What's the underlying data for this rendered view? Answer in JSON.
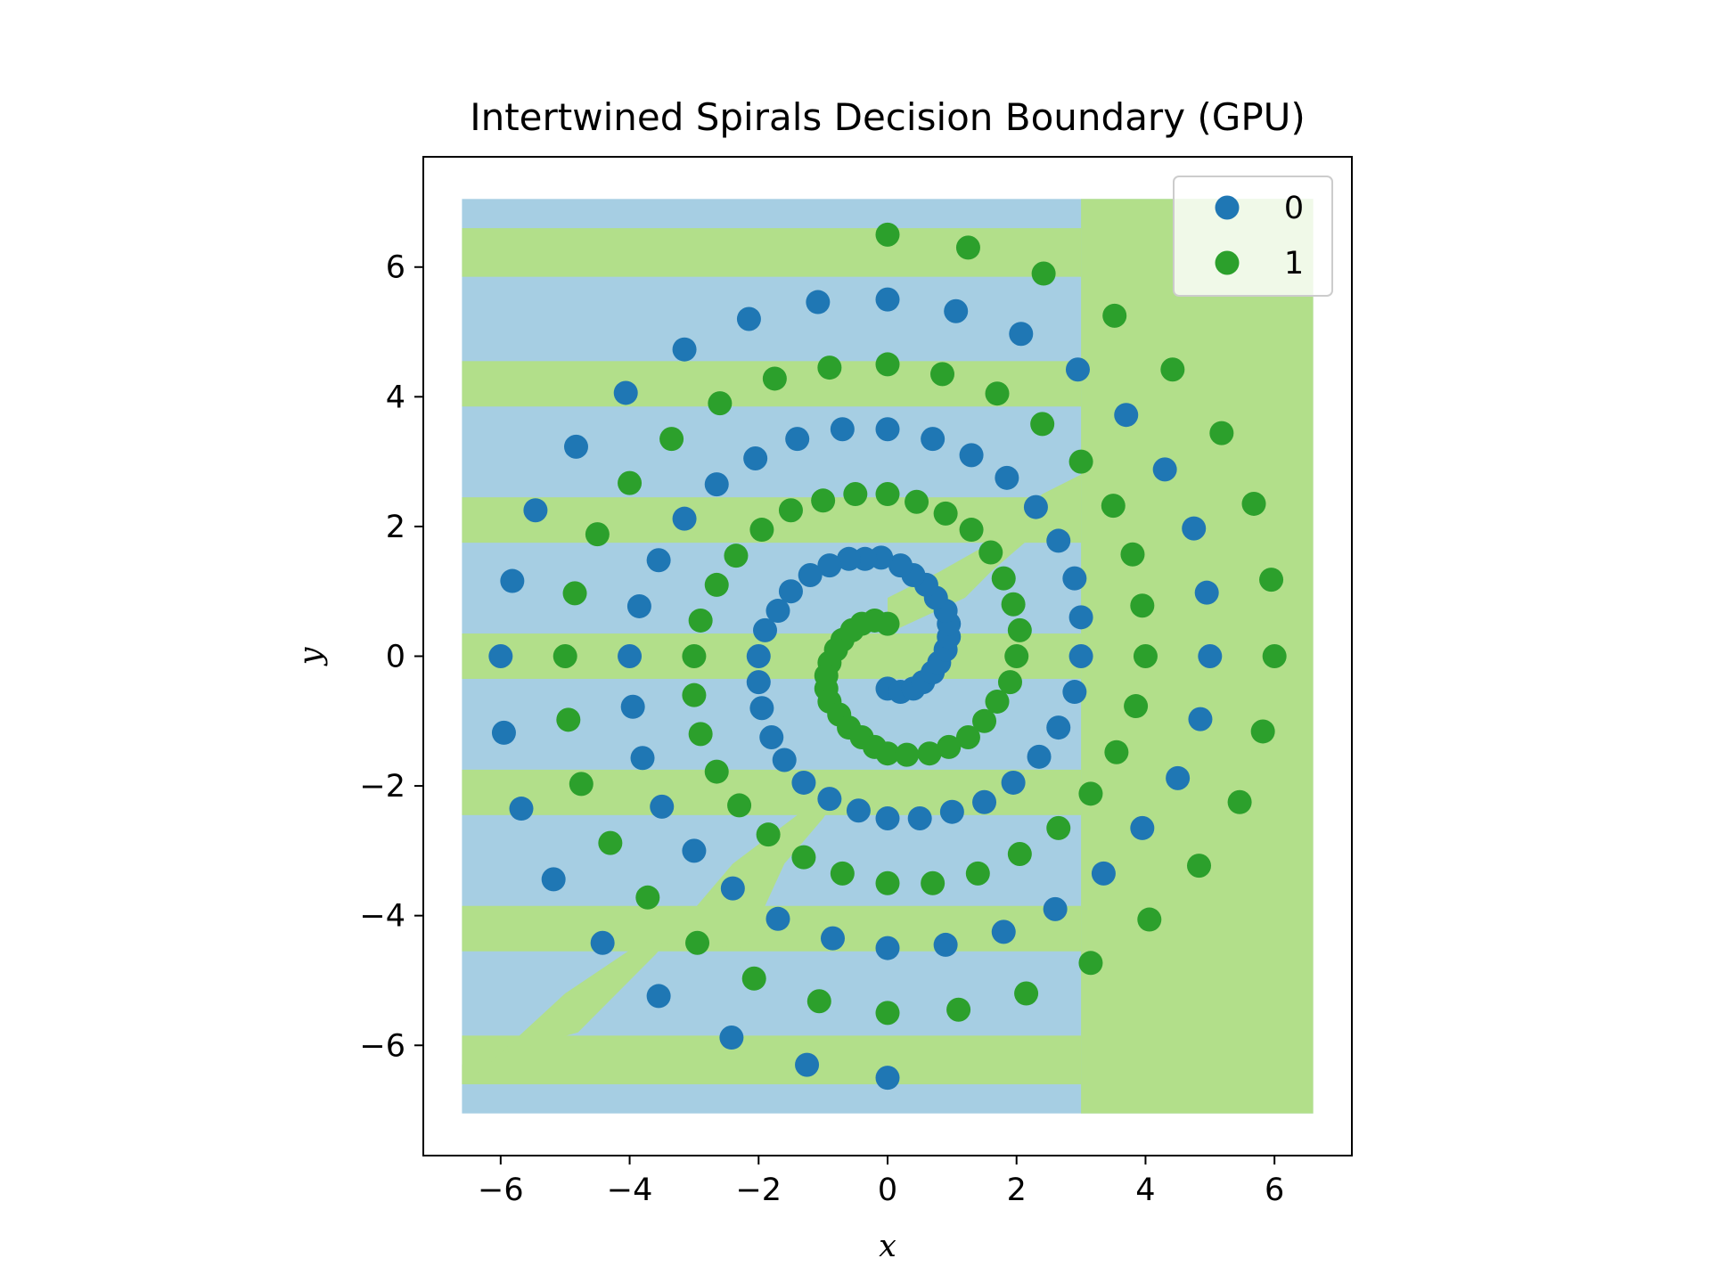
{
  "chart_data": {
    "type": "scatter",
    "title": "Intertwined Spirals Decision Boundary (GPU)",
    "xlabel": "x",
    "ylabel": "y",
    "xlim": [
      -7.2,
      7.2
    ],
    "ylim": [
      -7.7,
      7.7
    ],
    "xticks": [
      -6,
      -4,
      -2,
      0,
      2,
      4,
      6
    ],
    "yticks": [
      -6,
      -4,
      -2,
      0,
      2,
      4,
      6
    ],
    "tick_labels": {
      "x": [
        "−6",
        "−4",
        "−2",
        "0",
        "2",
        "4",
        "6"
      ],
      "y": [
        "−6",
        "−4",
        "−2",
        "0",
        "2",
        "4",
        "6"
      ]
    },
    "grid": false,
    "legend_position": "top-right",
    "background_region": {
      "description": "decision boundary",
      "x_extent": [
        -6.6,
        6.6
      ],
      "y_extent": [
        -7.05,
        7.05
      ],
      "colors": {
        "0": "#a6cee3",
        "1": "#b2df8a"
      }
    },
    "series": [
      {
        "name": "0",
        "color": "#1f77b4",
        "points": [
          [
            0.0,
            -0.5
          ],
          [
            0.2,
            -0.55
          ],
          [
            0.4,
            -0.5
          ],
          [
            0.55,
            -0.4
          ],
          [
            0.7,
            -0.25
          ],
          [
            0.8,
            -0.1
          ],
          [
            0.9,
            0.1
          ],
          [
            0.95,
            0.3
          ],
          [
            0.95,
            0.5
          ],
          [
            0.9,
            0.7
          ],
          [
            0.75,
            0.9
          ],
          [
            0.6,
            1.1
          ],
          [
            0.4,
            1.25
          ],
          [
            0.2,
            1.4
          ],
          [
            -0.1,
            1.52
          ],
          [
            -0.35,
            1.5
          ],
          [
            -0.6,
            1.5
          ],
          [
            -0.9,
            1.4
          ],
          [
            -1.2,
            1.25
          ],
          [
            -1.5,
            1.0
          ],
          [
            -1.7,
            0.7
          ],
          [
            -1.9,
            0.4
          ],
          [
            -2.0,
            0.0
          ],
          [
            -2.0,
            -0.4
          ],
          [
            -1.95,
            -0.8
          ],
          [
            -1.8,
            -1.25
          ],
          [
            -1.6,
            -1.6
          ],
          [
            -1.3,
            -1.95
          ],
          [
            -0.9,
            -2.2
          ],
          [
            -0.45,
            -2.38
          ],
          [
            0.0,
            -2.5
          ],
          [
            0.5,
            -2.5
          ],
          [
            1.0,
            -2.4
          ],
          [
            1.5,
            -2.25
          ],
          [
            1.95,
            -1.95
          ],
          [
            2.35,
            -1.55
          ],
          [
            2.65,
            -1.1
          ],
          [
            2.9,
            -0.55
          ],
          [
            3.0,
            0.0
          ],
          [
            3.0,
            0.6
          ],
          [
            2.9,
            1.2
          ],
          [
            2.65,
            1.78
          ],
          [
            2.3,
            2.3
          ],
          [
            1.85,
            2.75
          ],
          [
            1.3,
            3.1
          ],
          [
            0.7,
            3.35
          ],
          [
            0.0,
            3.5
          ],
          [
            -0.7,
            3.5
          ],
          [
            -1.4,
            3.35
          ],
          [
            -2.05,
            3.05
          ],
          [
            -2.65,
            2.65
          ],
          [
            -3.15,
            2.12
          ],
          [
            -3.55,
            1.48
          ],
          [
            -3.85,
            0.77
          ],
          [
            -4.0,
            0.0
          ],
          [
            -3.95,
            -0.78
          ],
          [
            -3.8,
            -1.57
          ],
          [
            -3.5,
            -2.32
          ],
          [
            -3.0,
            -3.0
          ],
          [
            -2.4,
            -3.58
          ],
          [
            -1.7,
            -4.05
          ],
          [
            -0.85,
            -4.35
          ],
          [
            0.0,
            -4.5
          ],
          [
            0.9,
            -4.45
          ],
          [
            1.8,
            -4.25
          ],
          [
            2.6,
            -3.9
          ],
          [
            3.35,
            -3.35
          ],
          [
            3.95,
            -2.65
          ],
          [
            4.5,
            -1.88
          ],
          [
            4.85,
            -0.97
          ],
          [
            5.0,
            0.0
          ],
          [
            4.95,
            0.98
          ],
          [
            4.75,
            1.97
          ],
          [
            4.3,
            2.88
          ],
          [
            3.7,
            3.72
          ],
          [
            2.95,
            4.42
          ],
          [
            2.07,
            4.97
          ],
          [
            1.06,
            5.32
          ],
          [
            0.0,
            5.5
          ],
          [
            -1.08,
            5.46
          ],
          [
            -2.15,
            5.2
          ],
          [
            -3.15,
            4.73
          ],
          [
            -4.06,
            4.06
          ],
          [
            -4.83,
            3.23
          ],
          [
            -5.46,
            2.25
          ],
          [
            -5.82,
            1.16
          ],
          [
            -6.0,
            0.0
          ],
          [
            -5.95,
            -1.18
          ],
          [
            -5.68,
            -2.35
          ],
          [
            -5.18,
            -3.44
          ],
          [
            -4.42,
            -4.42
          ],
          [
            -3.55,
            -5.24
          ],
          [
            -2.42,
            -5.88
          ],
          [
            -1.25,
            -6.3
          ],
          [
            0.0,
            -6.5
          ]
        ]
      },
      {
        "name": "1",
        "color": "#2ca02c",
        "points": [
          [
            0.0,
            0.5
          ],
          [
            -0.2,
            0.55
          ],
          [
            -0.4,
            0.5
          ],
          [
            -0.55,
            0.4
          ],
          [
            -0.7,
            0.25
          ],
          [
            -0.8,
            0.1
          ],
          [
            -0.9,
            -0.1
          ],
          [
            -0.95,
            -0.3
          ],
          [
            -0.95,
            -0.5
          ],
          [
            -0.9,
            -0.7
          ],
          [
            -0.75,
            -0.9
          ],
          [
            -0.6,
            -1.1
          ],
          [
            -0.4,
            -1.25
          ],
          [
            -0.2,
            -1.4
          ],
          [
            0.0,
            -1.5
          ],
          [
            0.3,
            -1.52
          ],
          [
            0.65,
            -1.5
          ],
          [
            0.95,
            -1.4
          ],
          [
            1.25,
            -1.25
          ],
          [
            1.5,
            -1.0
          ],
          [
            1.7,
            -0.7
          ],
          [
            1.9,
            -0.4
          ],
          [
            2.0,
            0.0
          ],
          [
            2.05,
            0.4
          ],
          [
            1.95,
            0.8
          ],
          [
            1.8,
            1.2
          ],
          [
            1.6,
            1.6
          ],
          [
            1.3,
            1.95
          ],
          [
            0.9,
            2.2
          ],
          [
            0.45,
            2.38
          ],
          [
            0.0,
            2.5
          ],
          [
            -0.5,
            2.5
          ],
          [
            -1.0,
            2.4
          ],
          [
            -1.5,
            2.25
          ],
          [
            -1.95,
            1.95
          ],
          [
            -2.35,
            1.55
          ],
          [
            -2.65,
            1.1
          ],
          [
            -2.9,
            0.55
          ],
          [
            -3.0,
            0.0
          ],
          [
            -3.0,
            -0.6
          ],
          [
            -2.9,
            -1.2
          ],
          [
            -2.65,
            -1.78
          ],
          [
            -2.3,
            -2.3
          ],
          [
            -1.85,
            -2.75
          ],
          [
            -1.3,
            -3.1
          ],
          [
            -0.7,
            -3.35
          ],
          [
            0.0,
            -3.5
          ],
          [
            0.7,
            -3.5
          ],
          [
            1.4,
            -3.35
          ],
          [
            2.05,
            -3.05
          ],
          [
            2.65,
            -2.65
          ],
          [
            3.15,
            -2.12
          ],
          [
            3.55,
            -1.48
          ],
          [
            3.85,
            -0.77
          ],
          [
            4.0,
            0.0
          ],
          [
            3.95,
            0.78
          ],
          [
            3.8,
            1.57
          ],
          [
            3.5,
            2.32
          ],
          [
            3.0,
            3.0
          ],
          [
            2.4,
            3.58
          ],
          [
            1.7,
            4.05
          ],
          [
            0.85,
            4.35
          ],
          [
            0.0,
            4.5
          ],
          [
            -0.9,
            4.45
          ],
          [
            -1.75,
            4.28
          ],
          [
            -2.6,
            3.9
          ],
          [
            -3.35,
            3.35
          ],
          [
            -4.0,
            2.67
          ],
          [
            -4.5,
            1.88
          ],
          [
            -4.85,
            0.97
          ],
          [
            -5.0,
            0.0
          ],
          [
            -4.95,
            -0.98
          ],
          [
            -4.75,
            -1.97
          ],
          [
            -4.3,
            -2.88
          ],
          [
            -3.72,
            -3.72
          ],
          [
            -2.95,
            -4.42
          ],
          [
            -2.07,
            -4.97
          ],
          [
            -1.06,
            -5.32
          ],
          [
            0.0,
            -5.5
          ],
          [
            1.1,
            -5.45
          ],
          [
            2.15,
            -5.2
          ],
          [
            3.15,
            -4.73
          ],
          [
            4.06,
            -4.06
          ],
          [
            4.83,
            -3.23
          ],
          [
            5.46,
            -2.25
          ],
          [
            5.82,
            -1.16
          ],
          [
            6.0,
            0.0
          ],
          [
            5.95,
            1.18
          ],
          [
            5.68,
            2.35
          ],
          [
            5.18,
            3.44
          ],
          [
            4.42,
            4.42
          ],
          [
            3.52,
            5.25
          ],
          [
            2.42,
            5.9
          ],
          [
            1.25,
            6.3
          ],
          [
            0.0,
            6.5
          ]
        ]
      }
    ]
  }
}
